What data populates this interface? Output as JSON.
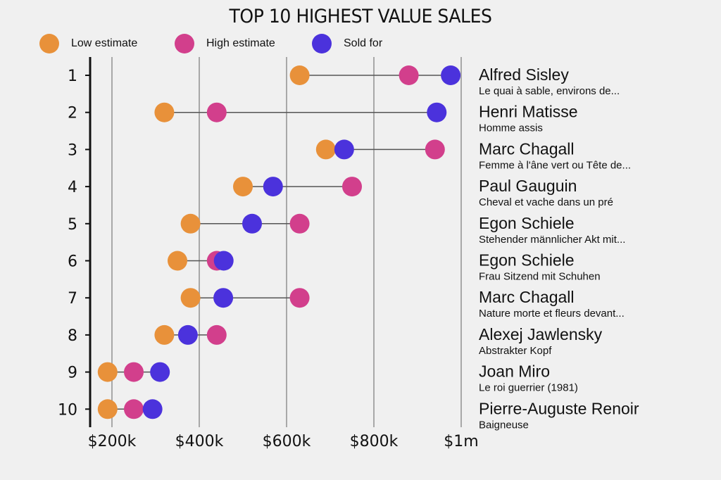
{
  "chart_data": {
    "type": "dumbbell",
    "title": "TOP 10 HIGHEST VALUE SALES",
    "xlabel": "",
    "ylabel": "",
    "xlim": [
      150,
      1000
    ],
    "x_ticks": [
      {
        "value": 200,
        "label": "$200k"
      },
      {
        "value": 400,
        "label": "$400k"
      },
      {
        "value": 600,
        "label": "$600k"
      },
      {
        "value": 800,
        "label": "$800k"
      },
      {
        "value": 1000,
        "label": "$1m"
      }
    ],
    "grid": "vertical",
    "legend_position": "top-left",
    "units": "thousands USD",
    "series": [
      {
        "key": "low",
        "name": "Low estimate",
        "color": "#E8913A"
      },
      {
        "key": "high",
        "name": "High estimate",
        "color": "#D23F8C"
      },
      {
        "key": "sold",
        "name": "Sold for",
        "color": "#4B32DC"
      }
    ],
    "rows": [
      {
        "rank": "1",
        "artist": "Alfred Sisley",
        "artwork": "Le quai à sable, environs de...",
        "low": 630,
        "high": 880,
        "sold": 976
      },
      {
        "rank": "2",
        "artist": "Henri Matisse",
        "artwork": "Homme assis",
        "low": 320,
        "high": 440,
        "sold": 944
      },
      {
        "rank": "3",
        "artist": "Marc Chagall",
        "artwork": "Femme à l'âne vert ou Tête de...",
        "low": 690,
        "high": 940,
        "sold": 732
      },
      {
        "rank": "4",
        "artist": "Paul Gauguin",
        "artwork": "Cheval et vache dans un pré",
        "low": 500,
        "high": 750,
        "sold": 569
      },
      {
        "rank": "5",
        "artist": "Egon Schiele",
        "artwork": "Stehender männlicher Akt mit...",
        "low": 380,
        "high": 630,
        "sold": 521
      },
      {
        "rank": "6",
        "artist": "Egon Schiele",
        "artwork": "Frau Sitzend mit Schuhen",
        "low": 350,
        "high": 440,
        "sold": 456
      },
      {
        "rank": "7",
        "artist": "Marc Chagall",
        "artwork": "Nature morte et fleurs devant...",
        "low": 380,
        "high": 630,
        "sold": 455
      },
      {
        "rank": "8",
        "artist": "Alexej Jawlensky",
        "artwork": "Abstrakter Kopf",
        "low": 320,
        "high": 440,
        "sold": 374
      },
      {
        "rank": "9",
        "artist": "Joan Miro",
        "artwork": "Le roi guerrier (1981)",
        "low": 190,
        "high": 250,
        "sold": 310
      },
      {
        "rank": "10",
        "artist": "Pierre-Auguste Renoir",
        "artwork": "Baigneuse",
        "low": 190,
        "high": 250,
        "sold": 293
      }
    ]
  },
  "colors": {
    "background": "#F0F0F0",
    "axis": "#111111",
    "grid": "#A8A8A8",
    "connector": "#555555"
  }
}
